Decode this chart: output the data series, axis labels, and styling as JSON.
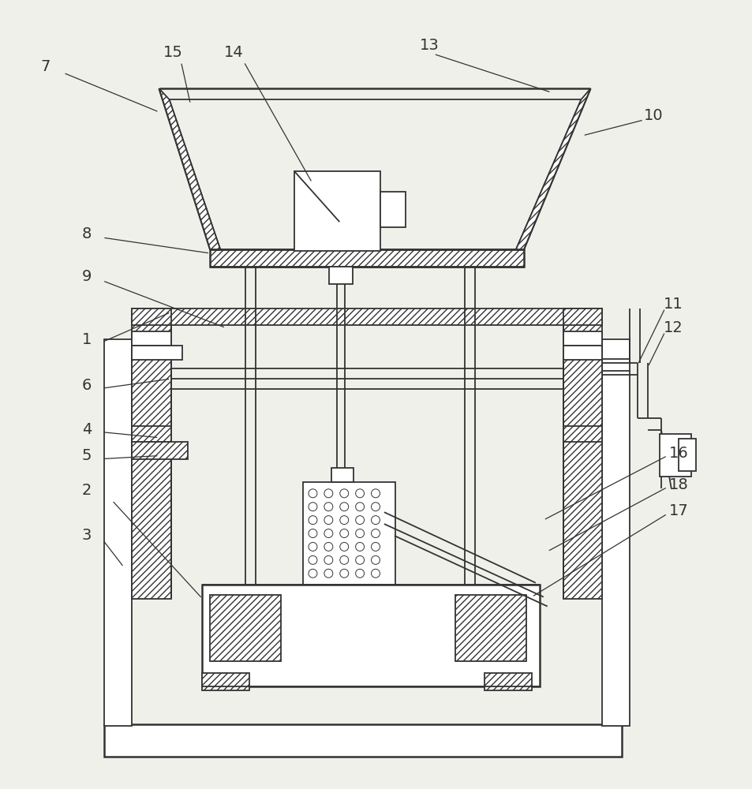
{
  "bg_color": "#f0f0eb",
  "line_color": "#333333",
  "lw": 1.3,
  "lw2": 1.8,
  "fig_w": 9.54,
  "fig_h": 10.0
}
